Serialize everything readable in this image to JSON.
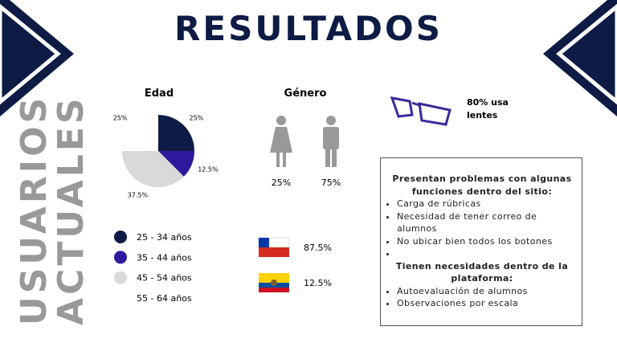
{
  "title": "RESULTADOS",
  "side_title": [
    "USUARIOS",
    "ACTUALES"
  ],
  "chart_data": {
    "type": "pie",
    "title": "Edad",
    "categories": [
      "25 - 34 años",
      "35 - 44 años",
      "45 - 54 años",
      "55 - 64 años"
    ],
    "values": [
      25,
      12.5,
      37.5,
      25
    ],
    "value_labels": [
      "25%",
      "12.5%",
      "37.5%",
      "25%"
    ],
    "colors": [
      "#0d1b45",
      "#2e1a9c",
      "#d9d9d9",
      "#ffffff"
    ]
  },
  "gender": {
    "title": "Género",
    "female": "25%",
    "male": "75%"
  },
  "nationality": [
    "87.5%",
    "12.5%"
  ],
  "glasses": "80% usa lentes",
  "problems": {
    "title": "Presentan problemas con algunas funciones dentro del sitio:",
    "items": [
      "Carga de rúbricas",
      "Necesidad de tener correo de alumnos",
      "No ubicar bien todos los botones"
    ]
  },
  "needs": {
    "title": "Tienen necesidades dentro de la plataforma:",
    "items": [
      "Autoevaluación de alumnos",
      "Observaciones por escala"
    ]
  }
}
